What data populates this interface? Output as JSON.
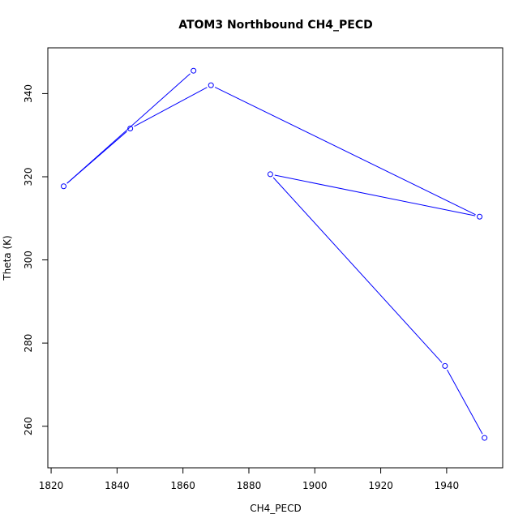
{
  "chart_data": {
    "type": "line",
    "title": "ATOM3 Northbound CH4_PECD",
    "xlabel": "CH4_PECD",
    "ylabel": "Theta (K)",
    "xlim": [
      1819,
      1957
    ],
    "ylim": [
      250,
      351
    ],
    "x_ticks": [
      1820,
      1840,
      1860,
      1880,
      1900,
      1920,
      1940
    ],
    "y_ticks": [
      260,
      280,
      300,
      320,
      340
    ],
    "grid": false,
    "series": [
      {
        "color": "#0000ff",
        "marker": "open-circle",
        "points": [
          {
            "x": 1951.5,
            "y": 257.2
          },
          {
            "x": 1939.5,
            "y": 274.5
          },
          {
            "x": 1886.5,
            "y": 320.6
          },
          {
            "x": 1950.0,
            "y": 310.4
          },
          {
            "x": 1868.5,
            "y": 342.0
          },
          {
            "x": 1844.0,
            "y": 331.6
          },
          {
            "x": 1823.8,
            "y": 317.7
          },
          {
            "x": 1863.2,
            "y": 345.5
          }
        ]
      }
    ]
  }
}
